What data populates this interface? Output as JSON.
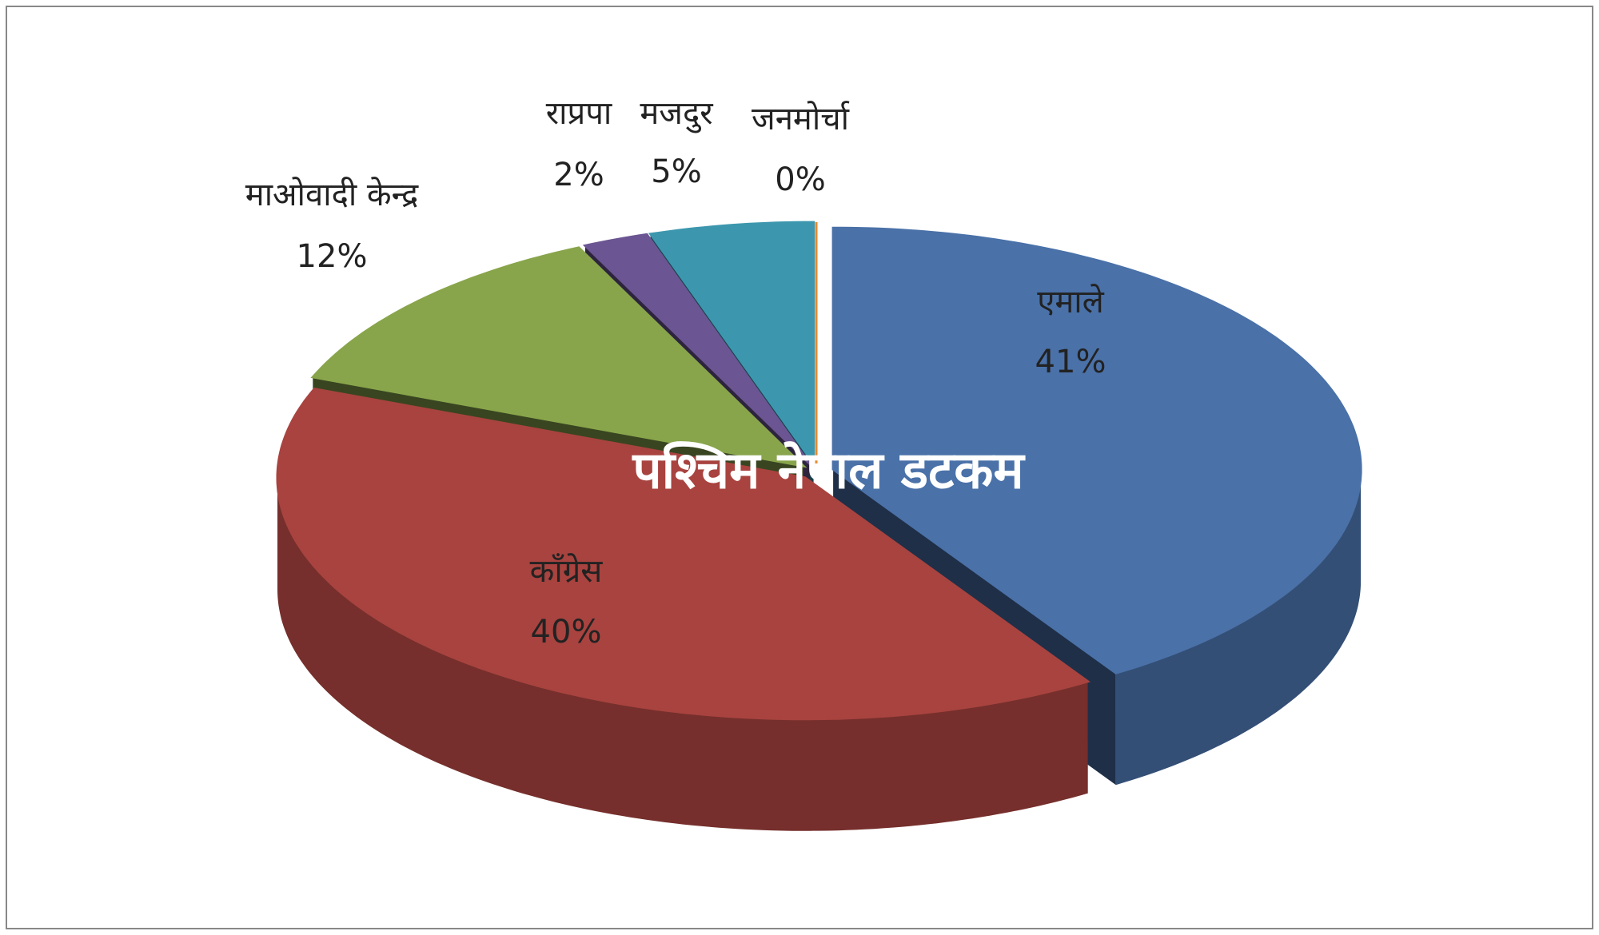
{
  "chart_data": {
    "type": "pie3d",
    "categories": [
      "एमाले",
      "काँग्रेस",
      "माओवादी  केन्द्र",
      "राप्रपा",
      "मजदुर",
      "जनमोर्चा"
    ],
    "values": [
      41,
      40,
      12,
      2,
      5,
      0
    ],
    "value_labels": [
      "41%",
      "40%",
      "12%",
      "2%",
      "5%",
      "0%"
    ],
    "colors": [
      "#4a71a8",
      "#a8433f",
      "#88a54b",
      "#6b5592",
      "#3c97ae",
      "#e68a2f"
    ],
    "watermark": "पश्चिम नेपाल डटकम"
  }
}
